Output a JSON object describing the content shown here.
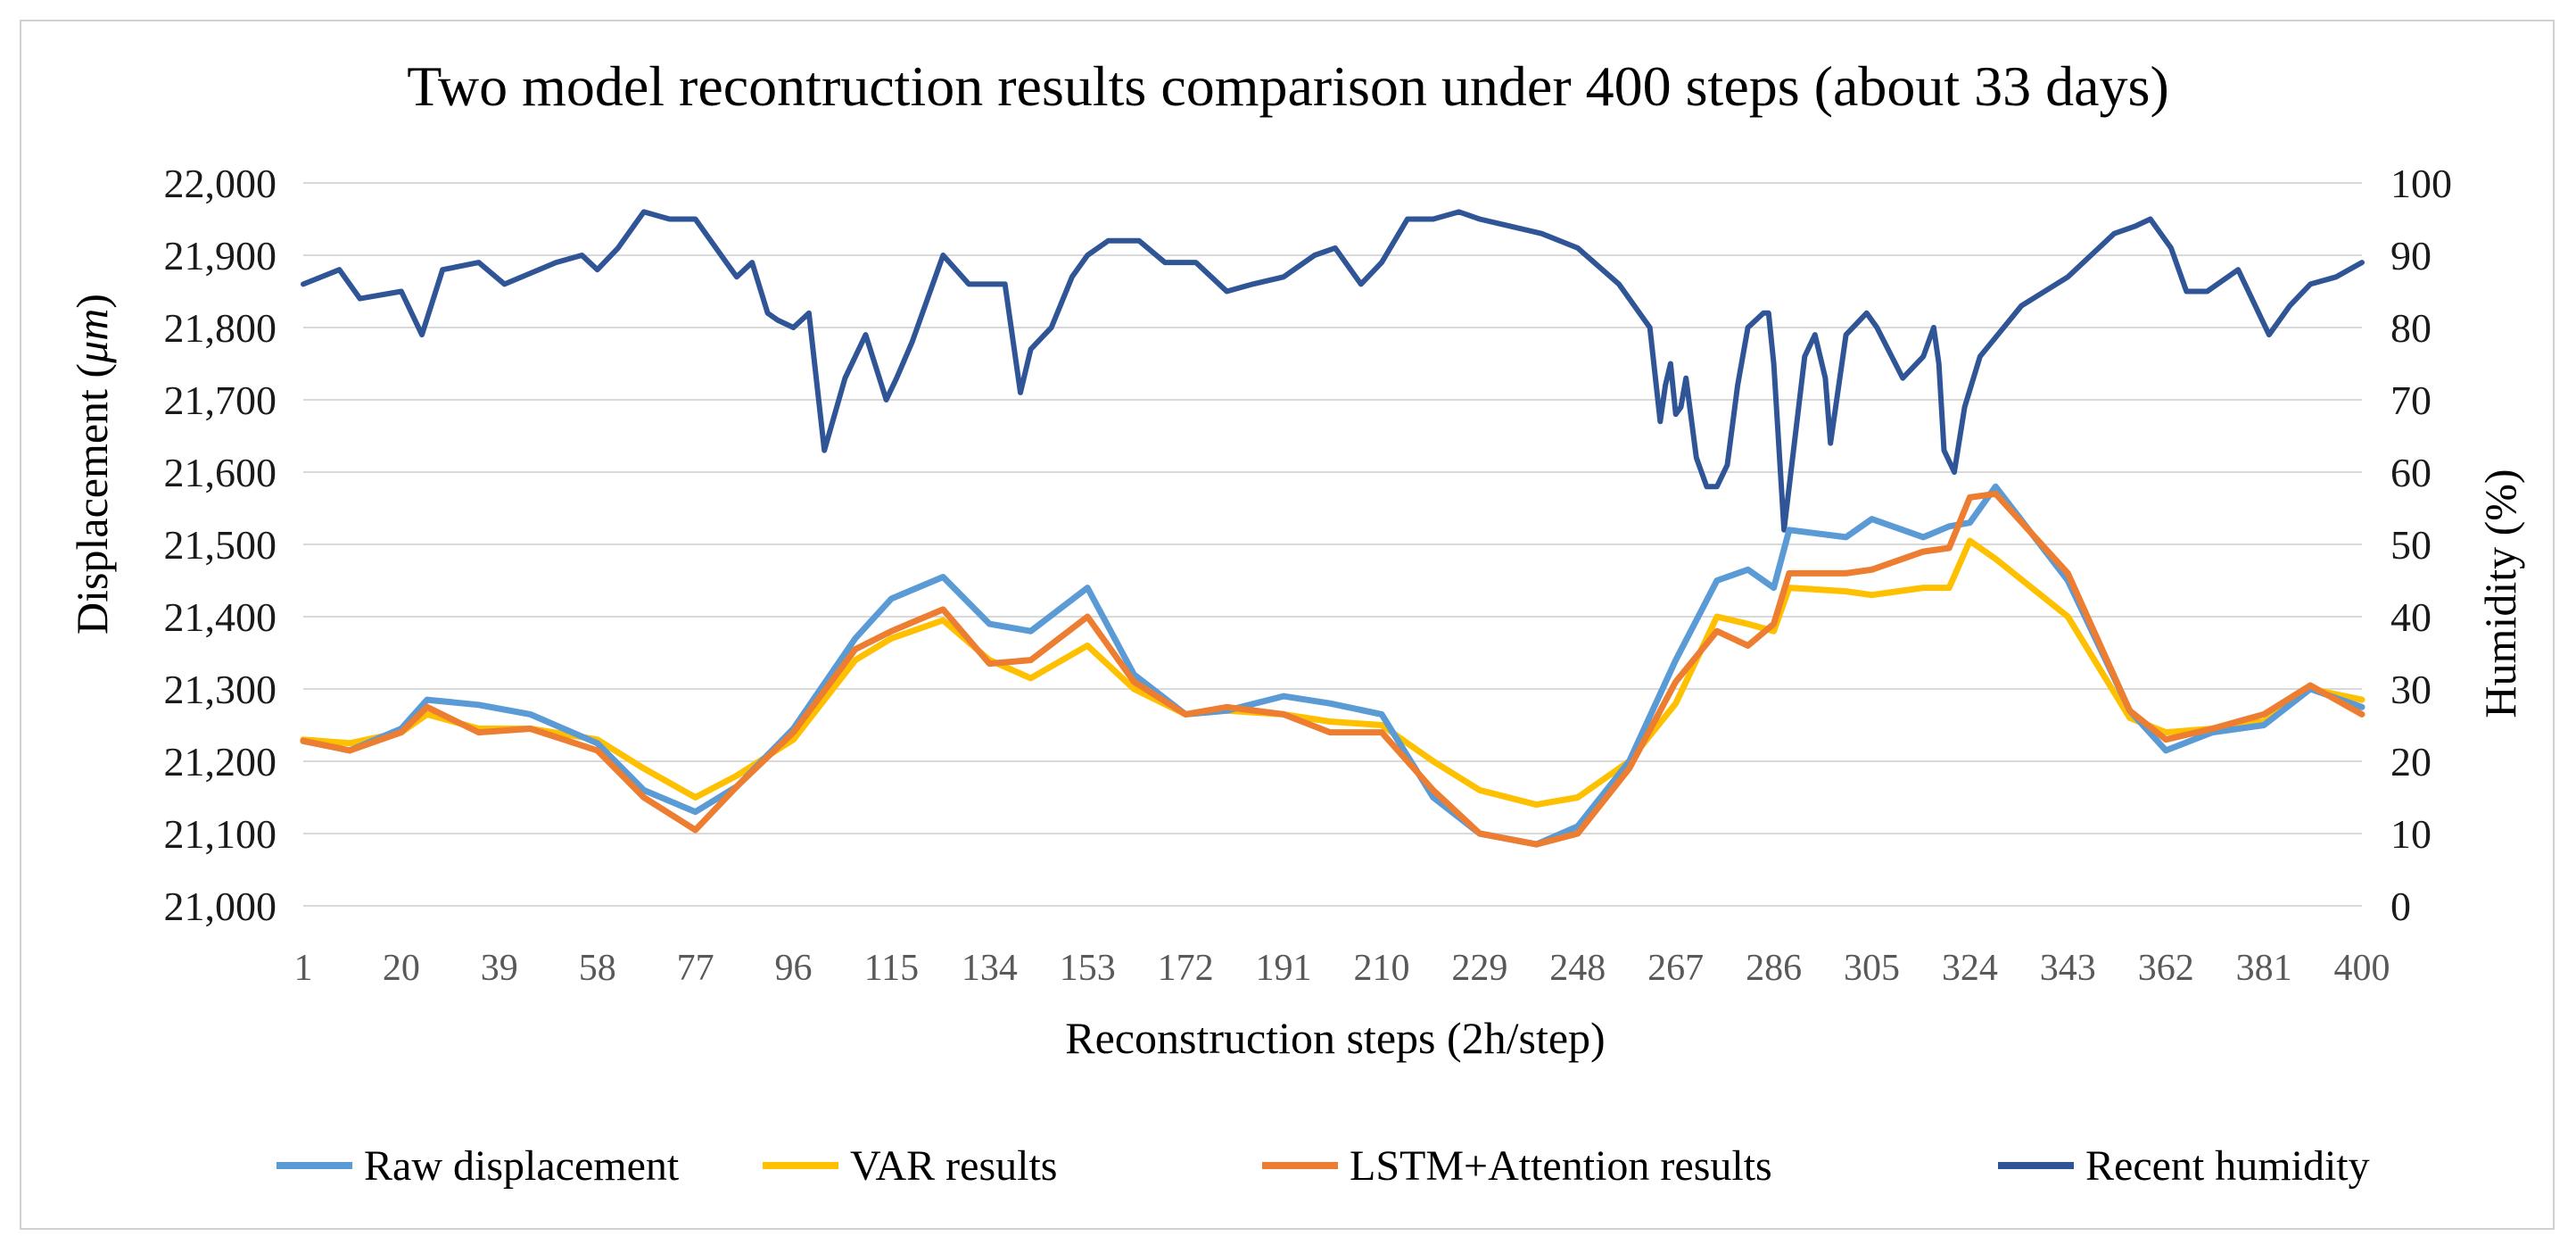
{
  "chart_data": {
    "type": "line",
    "title": "Two model recontruction results comparison under 400 steps (about 33 days)",
    "xlabel": "Reconstruction  steps (2h/step)",
    "ylabel_left": "Displacement (",
    "ylabel_left_unit": "μm",
    "ylabel_left_close": ")",
    "ylabel_right": "Humidity (%)",
    "x_ticks": [
      "1",
      "20",
      "39",
      "58",
      "77",
      "96",
      "115",
      "134",
      "153",
      "172",
      "191",
      "210",
      "229",
      "248",
      "267",
      "286",
      "305",
      "324",
      "343",
      "362",
      "381",
      "400"
    ],
    "y_left_ticks": [
      "21,000",
      "21,100",
      "21,200",
      "21,300",
      "21,400",
      "21,500",
      "21,600",
      "21,700",
      "21,800",
      "21,900",
      "22,000"
    ],
    "y_right_ticks": [
      "0",
      "10",
      "20",
      "30",
      "40",
      "50",
      "60",
      "70",
      "80",
      "90",
      "100"
    ],
    "ylim_left": [
      21000,
      22000
    ],
    "ylim_right": [
      0,
      100
    ],
    "xlim": [
      1,
      400
    ],
    "grid": true,
    "legend_position": "bottom",
    "series": [
      {
        "name": "Raw  displacement",
        "axis": "left",
        "color": "#5b9bd5",
        "x": [
          1,
          10,
          20,
          25,
          35,
          45,
          58,
          67,
          77,
          85,
          96,
          108,
          115,
          125,
          134,
          142,
          153,
          162,
          172,
          180,
          191,
          200,
          210,
          220,
          229,
          240,
          248,
          258,
          267,
          275,
          281,
          286,
          289,
          300,
          305,
          315,
          320,
          324,
          329,
          343,
          355,
          362,
          371,
          381,
          390,
          400
        ],
        "y": [
          21228,
          21215,
          21245,
          21285,
          21278,
          21265,
          21225,
          21160,
          21130,
          21165,
          21245,
          21370,
          21425,
          21455,
          21390,
          21380,
          21440,
          21320,
          21265,
          21270,
          21290,
          21280,
          21265,
          21150,
          21100,
          21085,
          21110,
          21200,
          21340,
          21450,
          21465,
          21440,
          21520,
          21510,
          21535,
          21510,
          21525,
          21530,
          21580,
          21450,
          21270,
          21215,
          21240,
          21250,
          21300,
          21275
        ]
      },
      {
        "name": "VAR  results",
        "axis": "left",
        "color": "#ffc000",
        "x": [
          1,
          10,
          20,
          25,
          35,
          45,
          58,
          67,
          77,
          85,
          96,
          108,
          115,
          125,
          134,
          142,
          153,
          162,
          172,
          180,
          191,
          200,
          210,
          220,
          229,
          240,
          248,
          258,
          267,
          275,
          281,
          286,
          289,
          300,
          305,
          315,
          320,
          324,
          329,
          343,
          355,
          362,
          371,
          381,
          390,
          400
        ],
        "y": [
          21230,
          21225,
          21240,
          21265,
          21245,
          21245,
          21230,
          21190,
          21150,
          21180,
          21230,
          21340,
          21370,
          21395,
          21340,
          21315,
          21360,
          21300,
          21265,
          21270,
          21265,
          21255,
          21250,
          21200,
          21160,
          21140,
          21150,
          21200,
          21280,
          21400,
          21390,
          21380,
          21440,
          21435,
          21430,
          21440,
          21440,
          21505,
          21480,
          21400,
          21260,
          21240,
          21245,
          21255,
          21300,
          21285
        ]
      },
      {
        "name": "LSTM+Attention results",
        "axis": "left",
        "color": "#ed7d31",
        "x": [
          1,
          10,
          20,
          25,
          35,
          45,
          58,
          67,
          77,
          85,
          96,
          108,
          115,
          125,
          134,
          142,
          153,
          162,
          172,
          180,
          191,
          200,
          210,
          220,
          229,
          240,
          248,
          258,
          267,
          275,
          281,
          286,
          289,
          300,
          305,
          315,
          320,
          324,
          329,
          343,
          355,
          362,
          371,
          381,
          390,
          400
        ],
        "y": [
          21228,
          21215,
          21240,
          21275,
          21240,
          21245,
          21215,
          21150,
          21105,
          21165,
          21240,
          21355,
          21380,
          21410,
          21335,
          21340,
          21400,
          21310,
          21265,
          21275,
          21265,
          21240,
          21240,
          21160,
          21100,
          21085,
          21100,
          21190,
          21310,
          21380,
          21360,
          21390,
          21460,
          21460,
          21465,
          21490,
          21495,
          21565,
          21570,
          21460,
          21270,
          21230,
          21245,
          21265,
          21305,
          21265
        ]
      },
      {
        "name": "Recent  humidity",
        "axis": "right",
        "color": "#2f5597",
        "x": [
          1,
          8,
          12,
          20,
          24,
          28,
          35,
          40,
          50,
          55,
          58,
          62,
          67,
          72,
          77,
          82,
          85,
          88,
          91,
          93,
          96,
          99,
          102,
          106,
          110,
          114,
          116,
          119,
          125,
          130,
          137,
          140,
          142,
          146,
          150,
          153,
          157,
          163,
          168,
          174,
          180,
          185,
          191,
          197,
          201,
          206,
          210,
          215,
          220,
          225,
          229,
          235,
          241,
          248,
          256,
          262,
          264,
          265,
          266,
          267,
          268,
          269,
          271,
          273,
          275,
          277,
          279,
          281,
          284,
          285,
          286,
          288,
          292,
          294,
          296,
          297,
          300,
          304,
          306,
          311,
          315,
          316,
          317,
          318,
          319,
          321,
          323,
          326,
          334,
          343,
          352,
          356,
          359,
          363,
          366,
          370,
          376,
          382,
          386,
          390,
          395,
          400
        ],
        "y": [
          86,
          88,
          84,
          85,
          79,
          88,
          89,
          86,
          89,
          90,
          88,
          91,
          96,
          95,
          95,
          90,
          87,
          89,
          82,
          81,
          80,
          82,
          63,
          73,
          79,
          70,
          73,
          78,
          90,
          86,
          86,
          71,
          77,
          80,
          87,
          90,
          92,
          92,
          89,
          89,
          85,
          86,
          87,
          90,
          91,
          86,
          89,
          95,
          95,
          96,
          95,
          94,
          93,
          91,
          86,
          80,
          67,
          72,
          75,
          68,
          69,
          73,
          62,
          58,
          58,
          61,
          72,
          80,
          82,
          82,
          75,
          52,
          76,
          79,
          73,
          64,
          79,
          82,
          80,
          73,
          76,
          78,
          80,
          75,
          63,
          60,
          69,
          76,
          83,
          87,
          93,
          94,
          95,
          91,
          85,
          85,
          88,
          79,
          83,
          86,
          87,
          89
        ]
      }
    ]
  },
  "legend": [
    {
      "label": "Raw  displacement",
      "color": "#5b9bd5"
    },
    {
      "label": "VAR  results",
      "color": "#ffc000"
    },
    {
      "label": "LSTM+Attention results",
      "color": "#ed7d31"
    },
    {
      "label": "Recent  humidity",
      "color": "#2f5597"
    }
  ]
}
